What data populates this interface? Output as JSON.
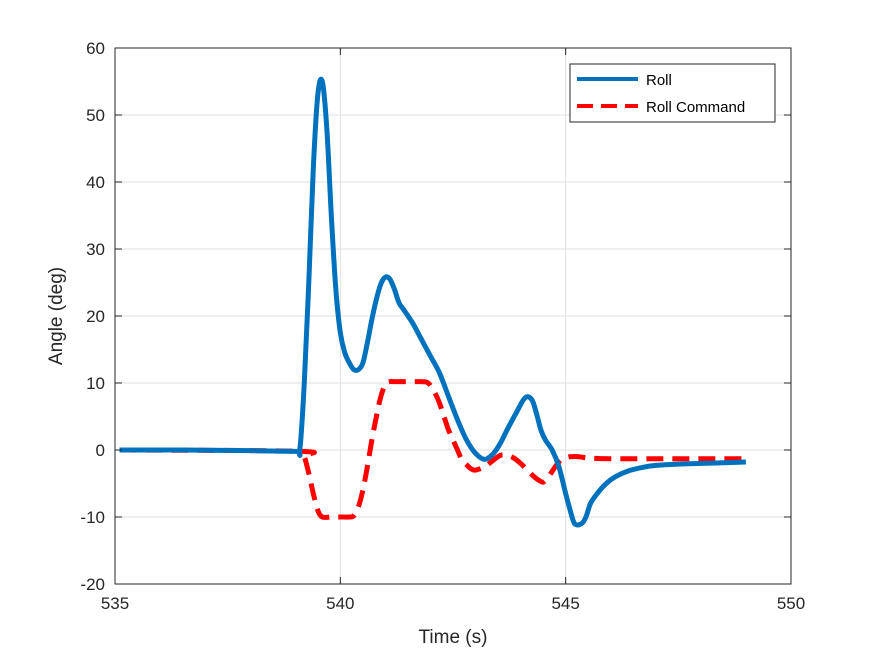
{
  "chart_data": {
    "type": "line",
    "title": "",
    "xlabel": "Time (s)",
    "ylabel": "Angle (deg)",
    "xlim": [
      535,
      550
    ],
    "ylim": [
      -20,
      60
    ],
    "xticks": [
      535,
      540,
      545,
      550
    ],
    "yticks": [
      -20,
      -10,
      0,
      10,
      20,
      30,
      40,
      50,
      60
    ],
    "grid": true,
    "legend_position": "top-right",
    "series": [
      {
        "name": "Roll",
        "color": "#0072BD",
        "style": "solid",
        "x": [
          535.1,
          536.5,
          538.0,
          539.0,
          539.1,
          539.2,
          539.3,
          539.4,
          539.5,
          539.6,
          539.7,
          539.8,
          539.9,
          540.0,
          540.1,
          540.2,
          540.3,
          540.4,
          540.5,
          540.6,
          540.7,
          540.8,
          540.9,
          541.0,
          541.1,
          541.2,
          541.3,
          541.4,
          541.6,
          541.8,
          542.0,
          542.2,
          542.4,
          542.6,
          542.8,
          543.0,
          543.2,
          543.4,
          543.55,
          543.7,
          543.9,
          544.1,
          544.25,
          544.35,
          544.45,
          544.55,
          544.7,
          544.85,
          545.0,
          545.1,
          545.2,
          545.35,
          545.45,
          545.55,
          545.7,
          545.9,
          546.1,
          546.4,
          546.7,
          547.0,
          547.5,
          548.0,
          548.5,
          549.0
        ],
        "y": [
          0,
          0,
          -0.1,
          -0.2,
          0,
          10,
          25,
          42,
          53,
          55,
          48,
          35,
          24,
          17.5,
          14.5,
          13,
          12,
          12,
          13,
          16,
          19.5,
          22.5,
          24.8,
          25.8,
          25.5,
          24,
          22,
          21,
          19,
          16.5,
          14,
          11.5,
          8,
          4.5,
          1.5,
          -0.5,
          -1.4,
          -0.5,
          1,
          3,
          5.5,
          7.8,
          7.5,
          5.5,
          3,
          1.5,
          0,
          -2.5,
          -6.5,
          -9,
          -11,
          -11,
          -10,
          -8,
          -6.5,
          -5,
          -4,
          -3.1,
          -2.6,
          -2.3,
          -2.1,
          -2.0,
          -1.9,
          -1.8
        ]
      },
      {
        "name": "Roll Command",
        "color": "#FF0000",
        "style": "dashed",
        "x": [
          535.1,
          539.1,
          539.2,
          539.3,
          539.4,
          539.5,
          539.6,
          539.8,
          540.0,
          540.2,
          540.3,
          540.4,
          540.5,
          540.6,
          540.7,
          540.8,
          540.9,
          541.0,
          541.1,
          541.2,
          541.4,
          541.6,
          541.8,
          541.95,
          542.1,
          542.2,
          542.3,
          542.4,
          542.5,
          542.6,
          542.7,
          542.8,
          542.9,
          543.0,
          543.2,
          543.4,
          543.55,
          543.7,
          543.85,
          544.0,
          544.15,
          544.3,
          544.4,
          544.5,
          544.6,
          544.7,
          544.8,
          544.9,
          545.0,
          545.1,
          545.3,
          545.5,
          546.0,
          547.0,
          548.0,
          549.0
        ],
        "y": [
          0,
          -0.2,
          -1,
          -3.5,
          -6.5,
          -9,
          -10,
          -10,
          -10,
          -10,
          -9.8,
          -8.5,
          -6,
          -2.5,
          1.5,
          5,
          8,
          9.8,
          10.2,
          10.2,
          10.2,
          10.2,
          10.2,
          10,
          8.5,
          7,
          5,
          3,
          1.5,
          0,
          -1.5,
          -2.2,
          -2.8,
          -3,
          -2.5,
          -1.5,
          -0.8,
          -0.8,
          -1.2,
          -2,
          -3,
          -4,
          -4.5,
          -4.8,
          -4.2,
          -3.2,
          -2.2,
          -1.5,
          -1.2,
          -1.0,
          -1.0,
          -1.2,
          -1.3,
          -1.3,
          -1.3,
          -1.3
        ]
      }
    ]
  }
}
